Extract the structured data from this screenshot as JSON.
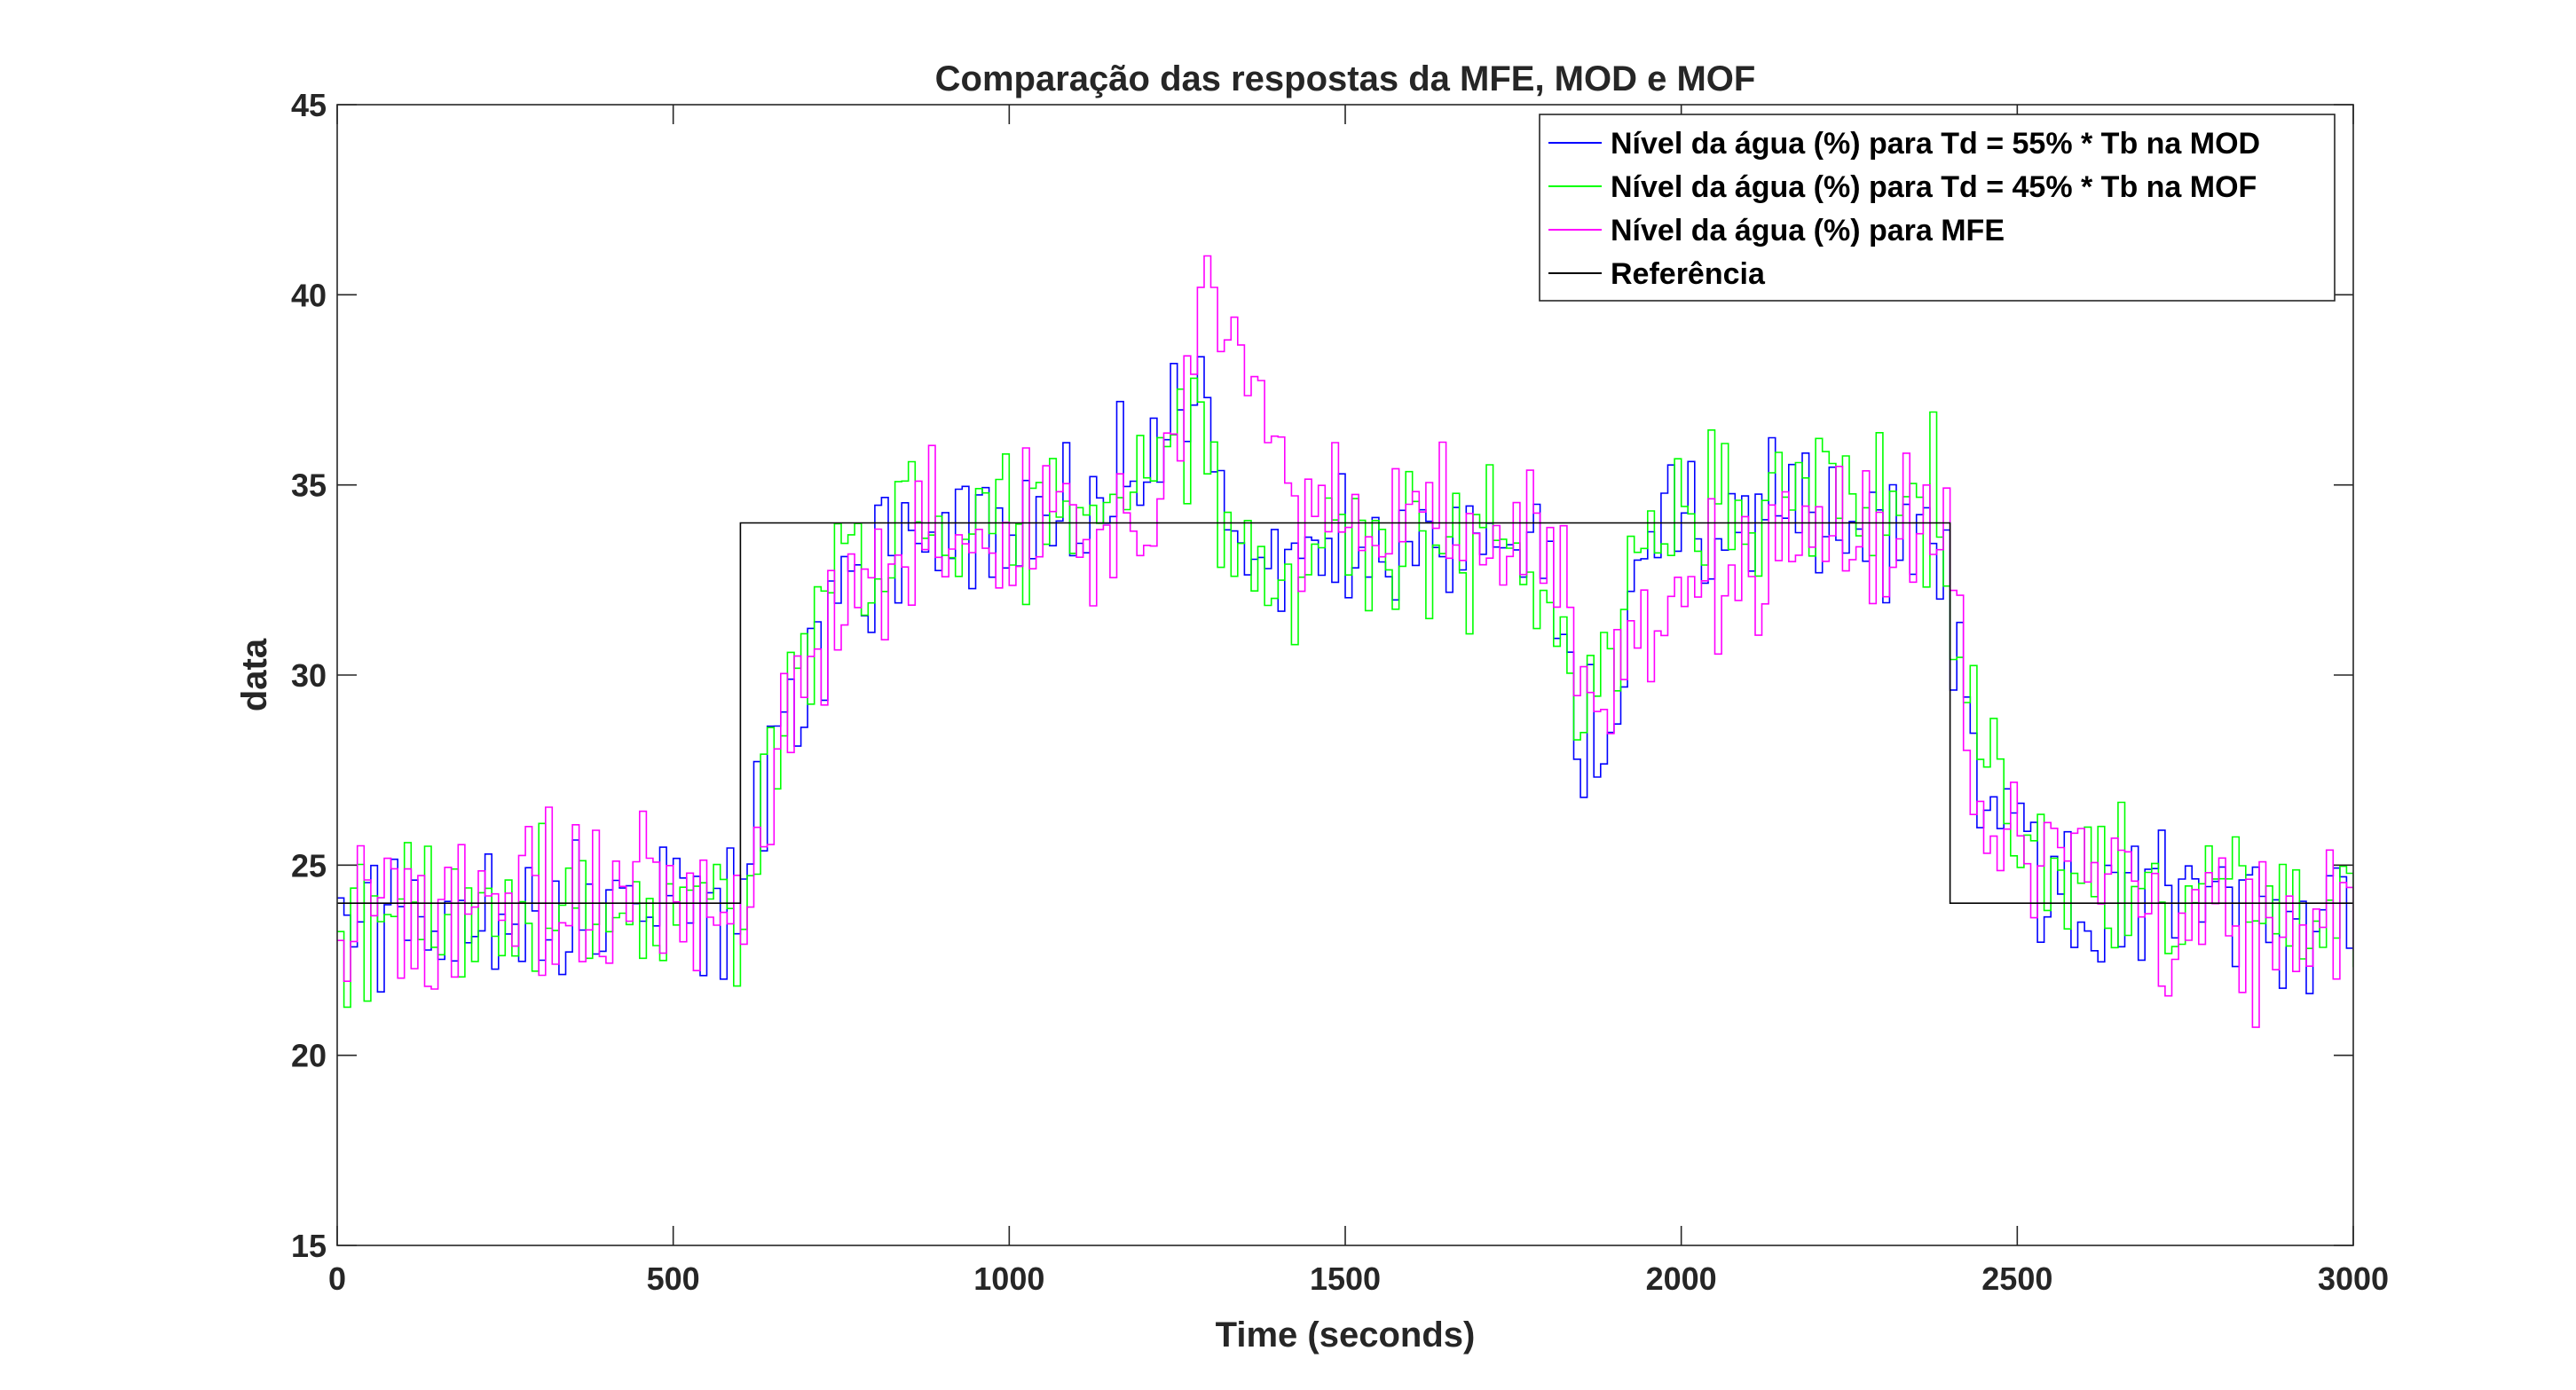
{
  "chart_data": {
    "type": "line",
    "title": "Comparação das respostas da MFE, MOD e MOF",
    "xlabel": "Time (seconds)",
    "ylabel": "data",
    "xlim": [
      0,
      3000
    ],
    "ylim": [
      15,
      45
    ],
    "xticks": [
      0,
      500,
      1000,
      1500,
      2000,
      2500,
      3000
    ],
    "yticks": [
      15,
      20,
      25,
      30,
      35,
      40,
      45
    ],
    "xtick_labels": [
      "0",
      "500",
      "1000",
      "1500",
      "2000",
      "2500",
      "3000"
    ],
    "ytick_labels": [
      "15",
      "20",
      "25",
      "30",
      "35",
      "40",
      "45"
    ],
    "grid": false,
    "legend_position": "top-right",
    "sample_period": 10,
    "series": [
      {
        "name": "Nível da água (%) para Td = 55% * Tb na MOD",
        "color": "#0000ff",
        "style": "stairs",
        "x": [
          0,
          100,
          200,
          300,
          400,
          500,
          600,
          650,
          700,
          750,
          800,
          900,
          1000,
          1100,
          1150,
          1200,
          1250,
          1280,
          1300,
          1330,
          1360,
          1400,
          1500,
          1600,
          1700,
          1800,
          1830,
          1860,
          1890,
          1920,
          1960,
          2000,
          2100,
          2200,
          2300,
          2380,
          2400,
          2430,
          2460,
          2500,
          2550,
          2600,
          2700,
          2800,
          2900,
          3000
        ],
        "values": [
          23.5,
          23.8,
          23.6,
          24.0,
          23.7,
          24.1,
          23.8,
          28.5,
          31.0,
          32.3,
          33.0,
          33.6,
          33.8,
          34.1,
          34.6,
          35.8,
          37.2,
          37.5,
          35.5,
          34.0,
          33.2,
          32.4,
          32.8,
          33.4,
          33.6,
          33.3,
          30.5,
          27.8,
          28.8,
          31.5,
          33.0,
          33.6,
          34.1,
          34.3,
          34.0,
          33.7,
          31.0,
          28.0,
          26.5,
          25.6,
          25.0,
          24.6,
          24.2,
          24.0,
          23.9,
          23.9
        ]
      },
      {
        "name": "Nível da água (%) para Td = 45% * Tb na MOF",
        "color": "#00ff00",
        "style": "stairs",
        "x": [
          0,
          100,
          200,
          300,
          400,
          500,
          600,
          650,
          700,
          750,
          800,
          900,
          1000,
          1100,
          1150,
          1200,
          1250,
          1280,
          1300,
          1330,
          1360,
          1400,
          1500,
          1600,
          1700,
          1800,
          1830,
          1860,
          1890,
          1920,
          1960,
          2000,
          2100,
          2200,
          2300,
          2380,
          2400,
          2430,
          2460,
          2500,
          2550,
          2600,
          2700,
          2800,
          2900,
          3000
        ],
        "values": [
          23.4,
          23.7,
          23.7,
          23.8,
          23.6,
          24.0,
          23.5,
          29.0,
          31.6,
          32.6,
          33.3,
          34.0,
          34.0,
          34.2,
          34.6,
          35.5,
          36.5,
          36.2,
          34.8,
          33.3,
          32.7,
          32.7,
          33.4,
          33.4,
          33.4,
          32.8,
          30.2,
          29.0,
          30.5,
          33.0,
          34.5,
          35.0,
          34.5,
          34.2,
          34.2,
          34.4,
          31.8,
          29.0,
          27.2,
          26.0,
          25.5,
          25.0,
          24.6,
          24.2,
          23.9,
          23.6
        ]
      },
      {
        "name": "Nível da água (%) para MFE",
        "color": "#ff00ff",
        "style": "stairs",
        "x": [
          0,
          100,
          200,
          300,
          400,
          500,
          600,
          650,
          700,
          750,
          800,
          900,
          1000,
          1100,
          1150,
          1200,
          1250,
          1280,
          1300,
          1330,
          1360,
          1400,
          1500,
          1600,
          1700,
          1800,
          1830,
          1860,
          1890,
          1920,
          1960,
          2000,
          2100,
          2200,
          2300,
          2380,
          2400,
          2430,
          2460,
          2500,
          2550,
          2600,
          2700,
          2800,
          2900,
          3000
        ],
        "values": [
          23.5,
          23.4,
          23.9,
          24.0,
          23.7,
          23.8,
          23.6,
          27.5,
          30.5,
          32.0,
          33.0,
          33.5,
          33.6,
          33.8,
          34.0,
          34.4,
          36.5,
          38.8,
          40.0,
          39.0,
          37.5,
          35.6,
          34.5,
          34.0,
          33.8,
          33.4,
          31.5,
          27.5,
          29.5,
          31.0,
          31.8,
          32.3,
          33.3,
          34.0,
          33.8,
          33.4,
          31.5,
          28.0,
          26.5,
          25.8,
          25.2,
          24.7,
          24.2,
          24.0,
          23.7,
          23.2
        ]
      },
      {
        "name": "Referência",
        "color": "#000000",
        "style": "steps",
        "x": [
          0,
          600,
          600,
          2400,
          2400,
          3000
        ],
        "values": [
          24,
          24,
          34,
          34,
          24,
          24
        ]
      }
    ]
  }
}
